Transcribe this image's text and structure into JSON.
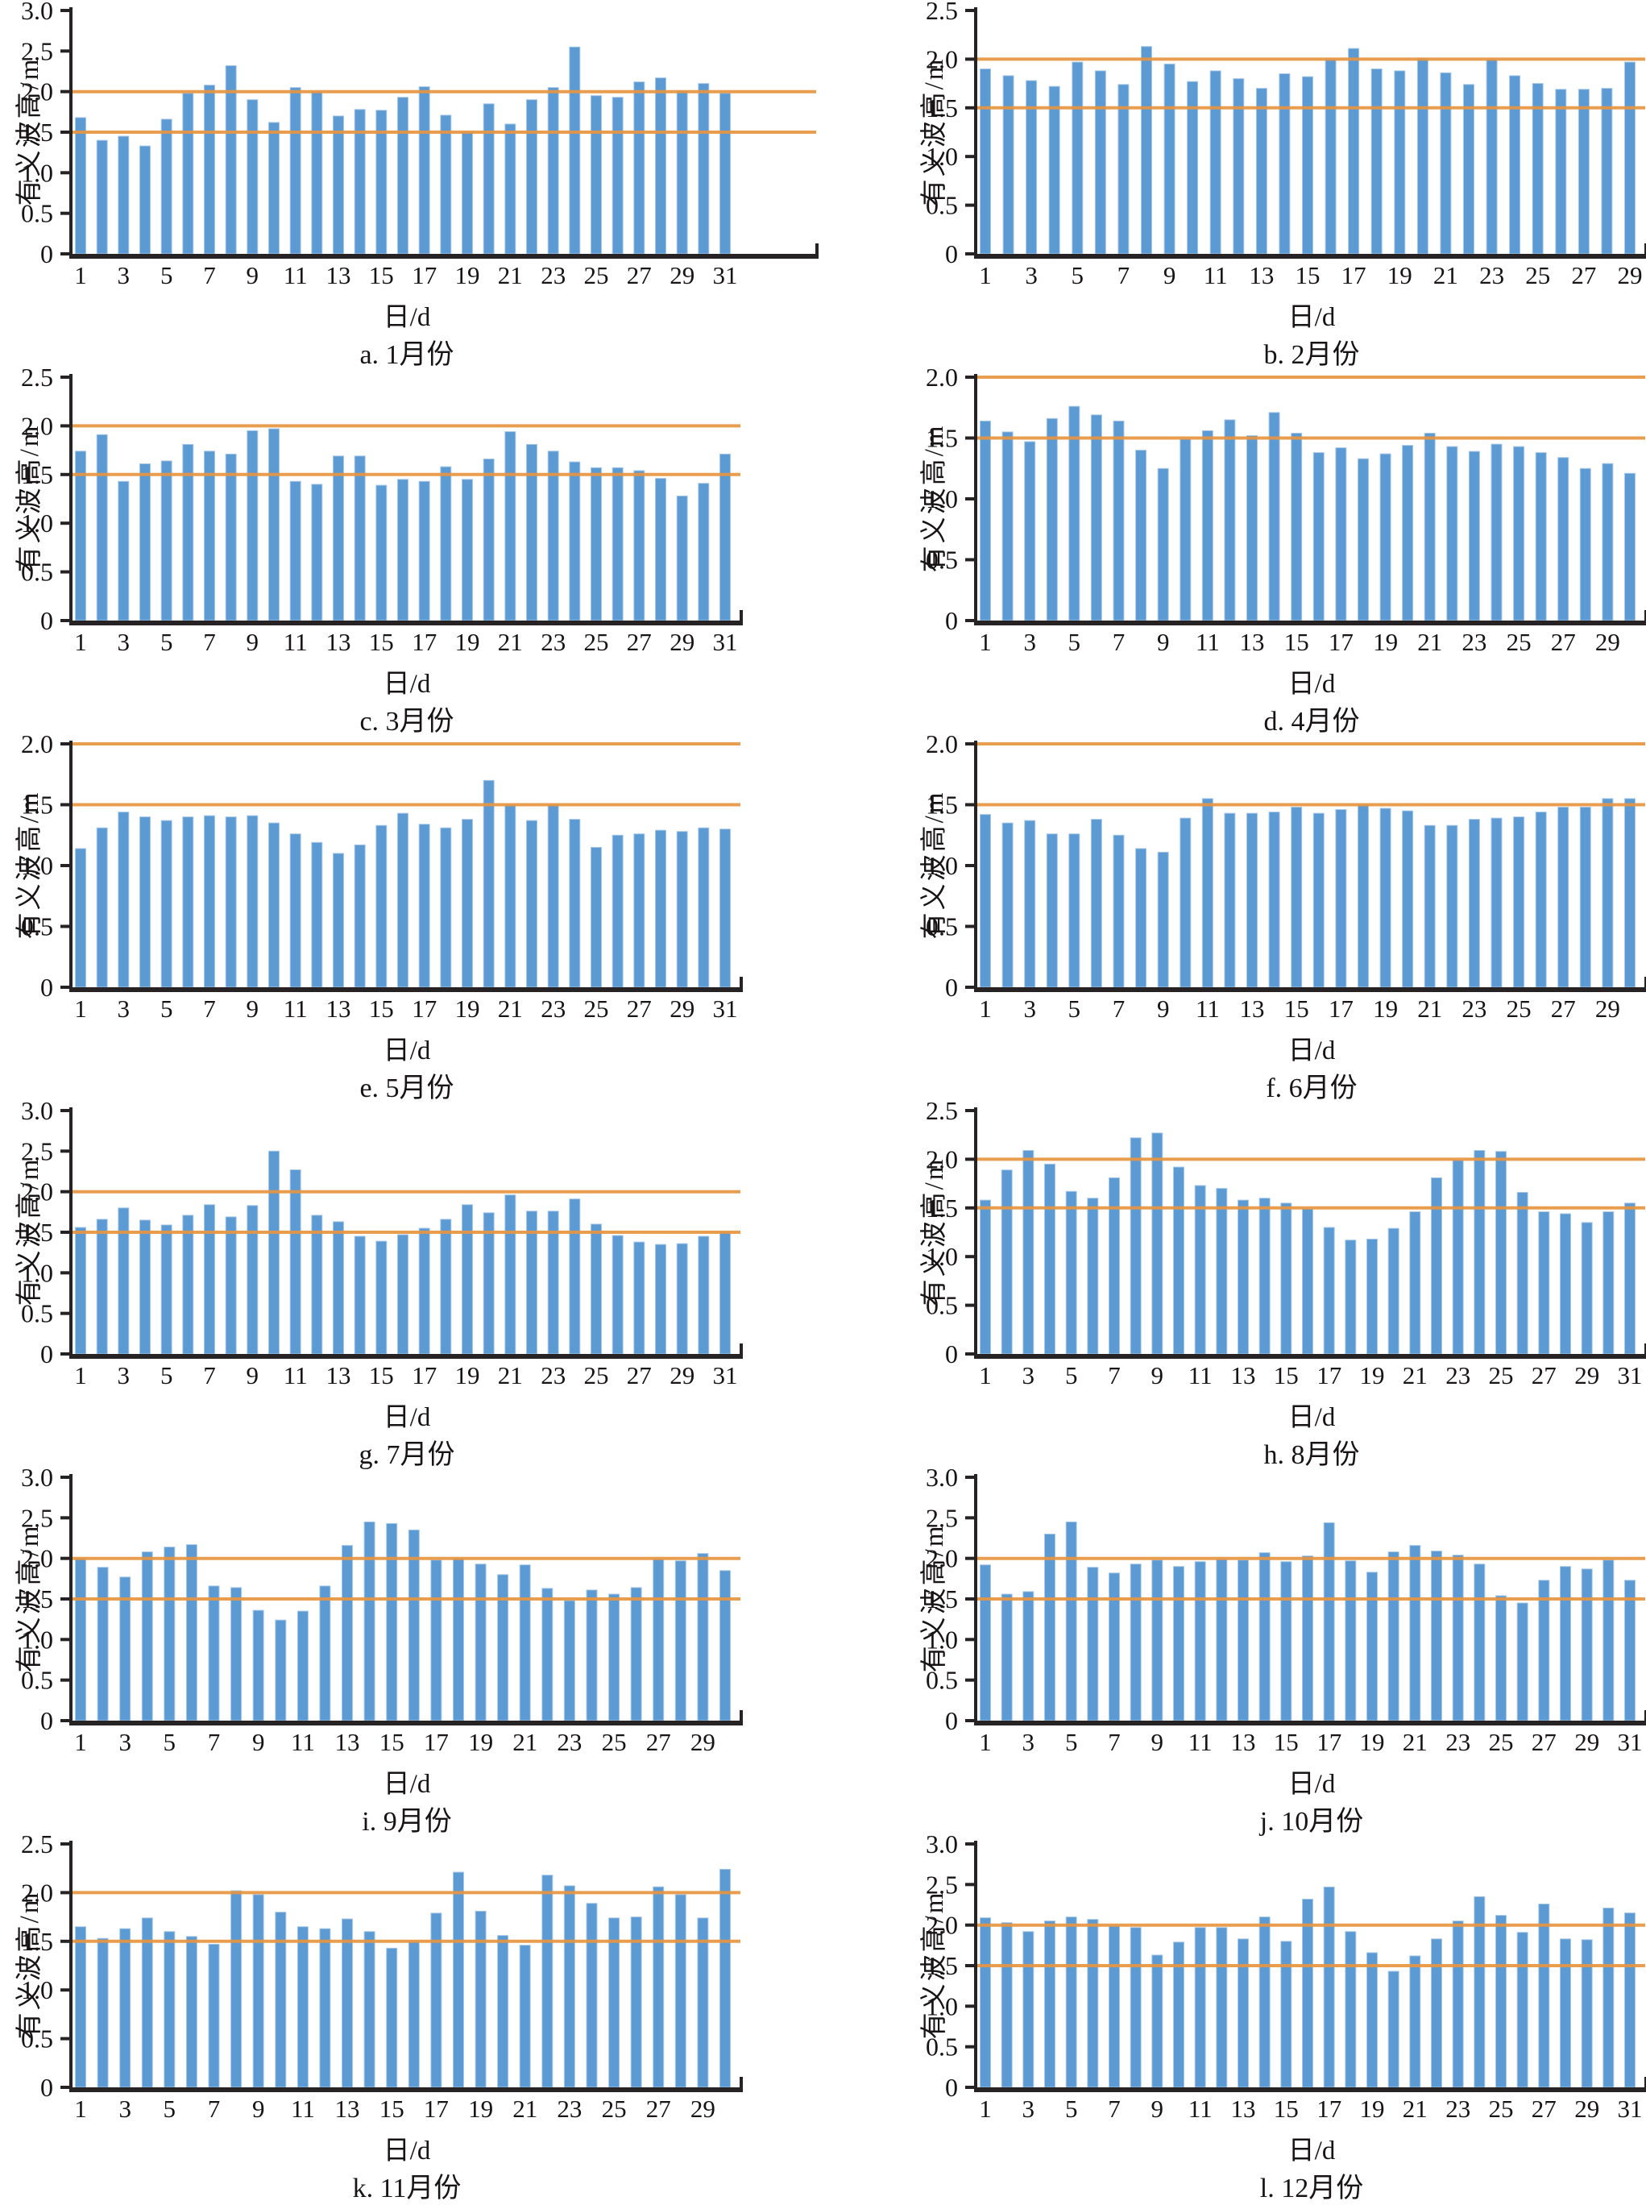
{
  "figure": {
    "ylabel": "有义波高/m",
    "xlabel": "日/d",
    "ref_lines": [
      1.5,
      2.0
    ],
    "colors": {
      "bar": "#5b9ad3",
      "bar_edge": "#a9c9e8",
      "ref_line": "#e79540",
      "axis": "#272325",
      "text": "#181415"
    }
  },
  "chart_data": [
    {
      "type": "bar",
      "caption": "a. 1月份",
      "month": 1,
      "days": 31,
      "ylim": [
        0,
        3.0
      ],
      "ytick_step": 0.5,
      "axis_end_x": 1016,
      "xticks": [
        1,
        3,
        5,
        7,
        9,
        11,
        13,
        15,
        17,
        19,
        21,
        23,
        25,
        27,
        29,
        31
      ],
      "values": [
        1.68,
        1.4,
        1.45,
        1.33,
        1.66,
        1.98,
        2.08,
        2.32,
        1.9,
        1.62,
        2.05,
        2.0,
        1.7,
        1.78,
        1.77,
        1.93,
        2.06,
        1.71,
        1.5,
        1.85,
        1.6,
        1.9,
        2.05,
        2.55,
        1.95,
        1.93,
        2.12,
        2.17,
        2.01,
        2.1,
        1.98
      ]
    },
    {
      "type": "bar",
      "caption": "b. 2月份",
      "month": 2,
      "days": 29,
      "ylim": [
        0,
        2.5
      ],
      "ytick_step": 0.5,
      "xticks": [
        1,
        3,
        5,
        7,
        9,
        11,
        13,
        15,
        17,
        19,
        21,
        23,
        25,
        27,
        29
      ],
      "values": [
        1.9,
        1.83,
        1.78,
        1.72,
        1.97,
        1.88,
        1.74,
        2.13,
        1.95,
        1.77,
        1.88,
        1.8,
        1.7,
        1.85,
        1.82,
        2.0,
        2.11,
        1.9,
        1.88,
        2.01,
        1.86,
        1.74,
        2.0,
        1.83,
        1.75,
        1.69,
        1.69,
        1.7,
        1.97
      ]
    },
    {
      "type": "bar",
      "caption": "c. 3月份",
      "month": 3,
      "days": 31,
      "ylim": [
        0,
        2.5
      ],
      "ytick_step": 0.5,
      "xticks": [
        1,
        3,
        5,
        7,
        9,
        11,
        13,
        15,
        17,
        19,
        21,
        23,
        25,
        27,
        29,
        31
      ],
      "values": [
        1.74,
        1.91,
        1.43,
        1.61,
        1.64,
        1.81,
        1.74,
        1.71,
        1.95,
        1.97,
        1.43,
        1.4,
        1.69,
        1.69,
        1.39,
        1.45,
        1.43,
        1.58,
        1.45,
        1.66,
        1.94,
        1.81,
        1.74,
        1.63,
        1.57,
        1.57,
        1.54,
        1.46,
        1.28,
        1.41,
        1.71
      ]
    },
    {
      "type": "bar",
      "caption": "d. 4月份",
      "month": 4,
      "days": 30,
      "ylim": [
        0,
        2.0
      ],
      "ytick_step": 0.5,
      "xticks": [
        1,
        3,
        5,
        7,
        9,
        11,
        13,
        15,
        17,
        19,
        21,
        23,
        25,
        27,
        29
      ],
      "values": [
        1.64,
        1.55,
        1.47,
        1.66,
        1.76,
        1.69,
        1.64,
        1.4,
        1.25,
        1.49,
        1.56,
        1.65,
        1.52,
        1.71,
        1.54,
        1.38,
        1.42,
        1.33,
        1.37,
        1.44,
        1.54,
        1.43,
        1.39,
        1.45,
        1.43,
        1.38,
        1.34,
        1.25,
        1.29,
        1.21
      ]
    },
    {
      "type": "bar",
      "caption": "e. 5月份",
      "month": 5,
      "days": 31,
      "ylim": [
        0,
        2.0
      ],
      "ytick_step": 0.5,
      "xticks": [
        1,
        3,
        5,
        7,
        9,
        11,
        13,
        15,
        17,
        19,
        21,
        23,
        25,
        27,
        29,
        31
      ],
      "values": [
        1.14,
        1.31,
        1.44,
        1.4,
        1.37,
        1.4,
        1.41,
        1.4,
        1.41,
        1.35,
        1.26,
        1.19,
        1.1,
        1.17,
        1.33,
        1.43,
        1.34,
        1.31,
        1.38,
        1.7,
        1.5,
        1.37,
        1.5,
        1.38,
        1.15,
        1.25,
        1.26,
        1.29,
        1.28,
        1.31,
        1.3
      ]
    },
    {
      "type": "bar",
      "caption": "f. 6月份",
      "month": 6,
      "days": 30,
      "ylim": [
        0,
        2.0
      ],
      "ytick_step": 0.5,
      "xticks": [
        1,
        3,
        5,
        7,
        9,
        11,
        13,
        15,
        17,
        19,
        21,
        23,
        25,
        27,
        29
      ],
      "values": [
        1.42,
        1.35,
        1.37,
        1.26,
        1.26,
        1.38,
        1.25,
        1.14,
        1.11,
        1.39,
        1.55,
        1.43,
        1.43,
        1.44,
        1.48,
        1.43,
        1.46,
        1.5,
        1.47,
        1.45,
        1.33,
        1.33,
        1.38,
        1.39,
        1.4,
        1.44,
        1.48,
        1.48,
        1.55,
        1.55
      ]
    },
    {
      "type": "bar",
      "caption": "g. 7月份",
      "month": 7,
      "days": 31,
      "ylim": [
        0,
        3.0
      ],
      "ytick_step": 0.5,
      "xticks": [
        1,
        3,
        5,
        7,
        9,
        11,
        13,
        15,
        17,
        19,
        21,
        23,
        25,
        27,
        29,
        31
      ],
      "values": [
        1.56,
        1.66,
        1.8,
        1.65,
        1.59,
        1.71,
        1.84,
        1.69,
        1.83,
        2.5,
        2.27,
        1.71,
        1.63,
        1.45,
        1.39,
        1.47,
        1.55,
        1.66,
        1.84,
        1.74,
        1.96,
        1.76,
        1.76,
        1.91,
        1.6,
        1.46,
        1.38,
        1.35,
        1.36,
        1.45,
        1.5
      ]
    },
    {
      "type": "bar",
      "caption": "h. 8月份",
      "month": 8,
      "days": 31,
      "ylim": [
        0,
        2.5
      ],
      "ytick_step": 0.5,
      "xticks": [
        1,
        3,
        5,
        7,
        9,
        11,
        13,
        15,
        17,
        19,
        21,
        23,
        25,
        27,
        29,
        31
      ],
      "values": [
        1.58,
        1.89,
        2.09,
        1.95,
        1.67,
        1.6,
        1.81,
        2.22,
        2.27,
        1.92,
        1.73,
        1.7,
        1.58,
        1.6,
        1.55,
        1.49,
        1.3,
        1.17,
        1.18,
        1.29,
        1.46,
        1.81,
        1.99,
        2.09,
        2.08,
        1.66,
        1.46,
        1.44,
        1.35,
        1.46,
        1.55
      ]
    },
    {
      "type": "bar",
      "caption": "i. 9月份",
      "month": 9,
      "days": 30,
      "ylim": [
        0,
        3.0
      ],
      "ytick_step": 0.5,
      "xticks": [
        1,
        3,
        5,
        7,
        9,
        11,
        13,
        15,
        17,
        19,
        21,
        23,
        25,
        27,
        29
      ],
      "values": [
        2.0,
        1.89,
        1.77,
        2.08,
        2.14,
        2.17,
        1.66,
        1.64,
        1.36,
        1.24,
        1.35,
        1.66,
        2.16,
        2.45,
        2.43,
        2.35,
        1.98,
        2.0,
        1.93,
        1.8,
        1.92,
        1.63,
        1.48,
        1.61,
        1.56,
        1.64,
        1.99,
        1.97,
        2.06,
        1.85
      ]
    },
    {
      "type": "bar",
      "caption": "j. 10月份",
      "month": 10,
      "days": 31,
      "ylim": [
        0,
        3.0
      ],
      "ytick_step": 0.5,
      "xticks": [
        1,
        3,
        5,
        7,
        9,
        11,
        13,
        15,
        17,
        19,
        21,
        23,
        25,
        27,
        29,
        31
      ],
      "values": [
        1.92,
        1.56,
        1.59,
        2.3,
        2.45,
        1.89,
        1.82,
        1.93,
        1.98,
        1.9,
        1.96,
        1.99,
        1.98,
        2.07,
        1.96,
        2.03,
        2.44,
        1.97,
        1.83,
        2.08,
        2.16,
        2.09,
        2.04,
        1.93,
        1.54,
        1.45,
        1.73,
        1.9,
        1.87,
        1.98,
        1.73
      ]
    },
    {
      "type": "bar",
      "caption": "k. 11月份",
      "month": 11,
      "days": 30,
      "ylim": [
        0,
        2.5
      ],
      "ytick_step": 0.5,
      "xticks": [
        1,
        3,
        5,
        7,
        9,
        11,
        13,
        15,
        17,
        19,
        21,
        23,
        25,
        27,
        29
      ],
      "values": [
        1.65,
        1.53,
        1.63,
        1.74,
        1.6,
        1.55,
        1.47,
        2.02,
        1.98,
        1.8,
        1.65,
        1.63,
        1.73,
        1.6,
        1.43,
        1.5,
        1.79,
        2.21,
        1.81,
        1.56,
        1.46,
        2.18,
        2.07,
        1.89,
        1.74,
        1.75,
        2.06,
        1.98,
        1.74,
        2.24
      ]
    },
    {
      "type": "bar",
      "caption": "l. 12月份",
      "month": 12,
      "days": 31,
      "ylim": [
        0,
        3.0
      ],
      "ytick_step": 0.5,
      "xticks": [
        1,
        3,
        5,
        7,
        9,
        11,
        13,
        15,
        17,
        19,
        21,
        23,
        25,
        27,
        29,
        31
      ],
      "values": [
        2.09,
        2.03,
        1.92,
        2.05,
        2.1,
        2.07,
        1.99,
        1.97,
        1.63,
        1.79,
        1.97,
        1.97,
        1.83,
        2.1,
        1.8,
        2.32,
        2.47,
        1.92,
        1.66,
        1.43,
        1.62,
        1.83,
        2.05,
        2.35,
        2.12,
        1.91,
        2.26,
        1.83,
        1.82,
        2.21,
        2.15
      ]
    }
  ]
}
